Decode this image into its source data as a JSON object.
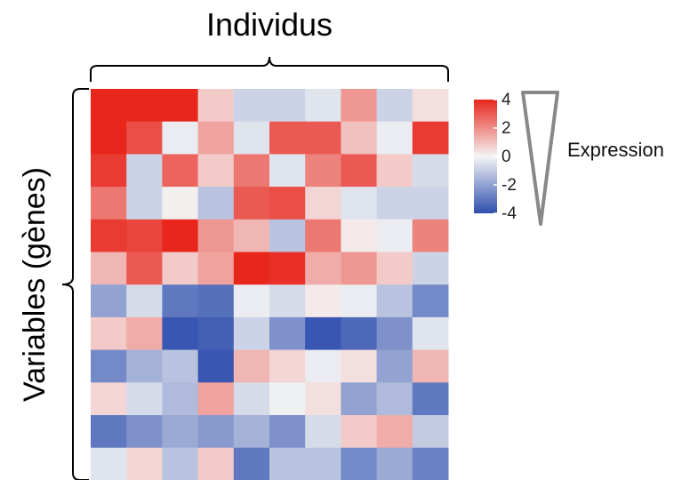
{
  "chart_data": {
    "type": "heatmap",
    "title": "Individus",
    "ylabel": "Variables (gènes)",
    "rows": 12,
    "cols": 10,
    "values": [
      [
        4.0,
        4.0,
        4.0,
        0.8,
        -0.8,
        -0.8,
        -0.4,
        1.8,
        -0.8,
        0.4
      ],
      [
        4.2,
        3.2,
        -0.2,
        1.6,
        -0.4,
        3.0,
        3.0,
        1.0,
        -0.2,
        3.6
      ],
      [
        3.6,
        -0.8,
        2.8,
        0.8,
        2.4,
        -0.4,
        2.2,
        3.0,
        0.8,
        -0.6
      ],
      [
        2.4,
        -0.8,
        0.1,
        -1.2,
        3.0,
        3.2,
        0.6,
        -0.4,
        -0.8,
        -0.8
      ],
      [
        3.6,
        3.4,
        4.0,
        1.8,
        1.2,
        -1.2,
        2.4,
        0.2,
        -0.2,
        2.2
      ],
      [
        1.2,
        3.0,
        0.8,
        1.6,
        4.2,
        3.8,
        1.4,
        1.8,
        0.8,
        -0.8
      ],
      [
        -2.0,
        -0.6,
        -3.0,
        -3.2,
        -0.2,
        -0.6,
        0.2,
        -0.2,
        -1.2,
        -2.6
      ],
      [
        0.8,
        1.4,
        -3.8,
        -3.6,
        -0.8,
        -2.4,
        -3.8,
        -3.4,
        -2.4,
        -0.4
      ],
      [
        -2.6,
        -1.6,
        -1.2,
        -3.8,
        1.2,
        0.6,
        -0.2,
        0.4,
        -2.0,
        1.2
      ],
      [
        0.6,
        -0.6,
        -1.4,
        1.6,
        -0.6,
        -0.1,
        0.4,
        -2.0,
        -1.4,
        -3.0
      ],
      [
        -3.0,
        -2.4,
        -1.8,
        -2.2,
        -1.6,
        -2.4,
        -0.6,
        0.8,
        1.4,
        -1.0
      ],
      [
        -0.4,
        0.6,
        -1.2,
        0.8,
        -3.0,
        -1.2,
        -1.2,
        -2.6,
        -1.8,
        -2.8
      ]
    ],
    "color_scale": {
      "range": [
        -4,
        4
      ],
      "low": "#2f4fae",
      "mid": "#f4f4f4",
      "high": "#e8261c",
      "ticks": [
        "4",
        "2",
        "0",
        "-2",
        "-4"
      ],
      "label": "Expression"
    }
  }
}
